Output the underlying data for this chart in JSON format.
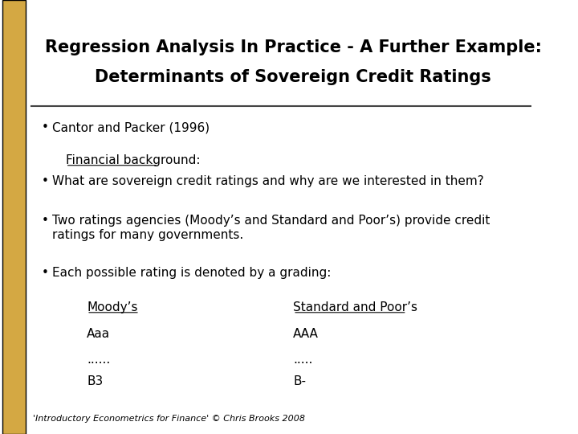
{
  "title_line1": "Regression Analysis In Practice - A Further Example:",
  "title_line2": "Determinants of Sovereign Credit Ratings",
  "bullet1": "Cantor and Packer (1996)",
  "financial_bg_label": "Financial background:",
  "bullet2": "What are sovereign credit ratings and why are we interested in them?",
  "bullet3": "Two ratings agencies (Moody’s and Standard and Poor’s) provide credit\nratings for many governments.",
  "bullet4": "Each possible rating is denoted by a grading:",
  "moodys_header": "Moody’s",
  "moodys_row1": "Aaa",
  "moodys_row2": "......",
  "moodys_row3": "B3",
  "sp_header": "Standard and Poor’s",
  "sp_row1": "AAA",
  "sp_row2": ".....",
  "sp_row3": "B-",
  "footer": "'Introductory Econometrics for Finance' © Chris Brooks 2008",
  "bg_color": "#ffffff",
  "left_stripe_color": "#d4a843",
  "title_color": "#000000",
  "text_color": "#000000",
  "footer_color": "#000000",
  "title_fontsize": 15,
  "body_fontsize": 11,
  "footer_fontsize": 8
}
